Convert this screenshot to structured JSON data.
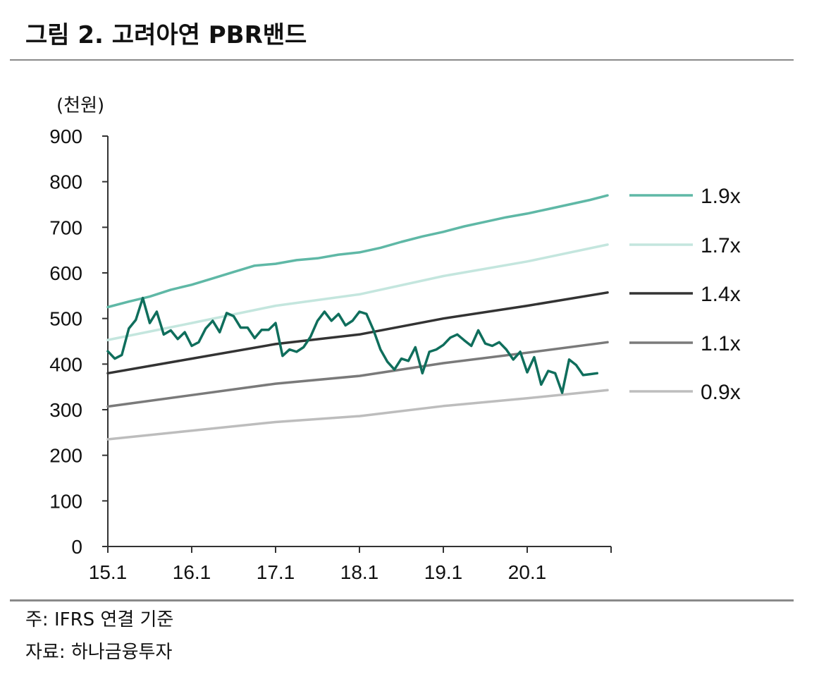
{
  "figure": {
    "title": "그림 2. 고려아연 PBR밴드",
    "note": "주: IFRS 연결 기준",
    "source": "자료: 하나금융투자"
  },
  "chart_data": {
    "type": "line",
    "unit_label": "(천원)",
    "ylim": [
      0,
      900
    ],
    "y_ticks": [
      0,
      100,
      200,
      300,
      400,
      500,
      600,
      700,
      800,
      900
    ],
    "xlim": [
      0,
      72
    ],
    "x_ticks": [
      {
        "x": 0,
        "label": "15.1"
      },
      {
        "x": 12,
        "label": "16.1"
      },
      {
        "x": 24,
        "label": "17.1"
      },
      {
        "x": 36,
        "label": "18.1"
      },
      {
        "x": 48,
        "label": "19.1"
      },
      {
        "x": 60,
        "label": "20.1"
      }
    ],
    "grid": false,
    "legend_position": "right",
    "series": [
      {
        "name": "1.9x",
        "color": "#5fb8a6",
        "width": 3.5,
        "x": [
          0,
          3,
          6,
          9,
          12,
          15,
          18,
          21,
          24,
          27,
          30,
          33,
          36,
          39,
          42,
          45,
          48,
          51,
          54,
          57,
          60,
          63,
          66,
          69,
          71.5
        ],
        "y": [
          525,
          537,
          548,
          563,
          574,
          588,
          602,
          616,
          620,
          628,
          632,
          640,
          645,
          655,
          668,
          680,
          690,
          702,
          712,
          722,
          730,
          740,
          750,
          760,
          770
        ]
      },
      {
        "name": "1.7x",
        "color": "#c4e6de",
        "width": 3.5,
        "x": [
          0,
          12,
          24,
          36,
          48,
          60,
          71.5
        ],
        "y": [
          453,
          490,
          528,
          553,
          593,
          625,
          662
        ]
      },
      {
        "name": "1.4x",
        "color": "#333333",
        "width": 3.5,
        "x": [
          0,
          12,
          24,
          36,
          48,
          60,
          71.5
        ],
        "y": [
          380,
          412,
          444,
          465,
          500,
          528,
          557
        ]
      },
      {
        "name": "1.1x",
        "color": "#7a7a7a",
        "width": 3.5,
        "x": [
          0,
          12,
          24,
          36,
          48,
          60,
          71.5
        ],
        "y": [
          307,
          332,
          357,
          374,
          402,
          425,
          448
        ]
      },
      {
        "name": "0.9x",
        "color": "#bdbdbd",
        "width": 3.5,
        "x": [
          0,
          12,
          24,
          36,
          48,
          60,
          71.5
        ],
        "y": [
          235,
          254,
          273,
          286,
          308,
          325,
          343
        ]
      },
      {
        "name": "",
        "color": "#0f6e5c",
        "width": 3.5,
        "x": [
          0,
          1,
          2,
          3,
          4,
          5,
          6,
          7,
          8,
          9,
          10,
          11,
          12,
          13,
          14,
          15,
          16,
          17,
          18,
          19,
          20,
          21,
          22,
          23,
          24,
          25,
          26,
          27,
          28,
          29,
          30,
          31,
          32,
          33,
          34,
          35,
          36,
          37,
          38,
          39,
          40,
          41,
          42,
          43,
          44,
          45,
          46,
          47,
          48,
          49,
          50,
          51,
          52,
          53,
          54,
          55,
          56,
          57,
          58,
          59,
          60,
          61,
          62,
          63,
          64,
          65,
          66,
          67,
          68,
          69,
          70
        ],
        "y": [
          428,
          412,
          420,
          478,
          497,
          545,
          490,
          515,
          465,
          474,
          455,
          470,
          440,
          448,
          478,
          495,
          470,
          512,
          505,
          480,
          480,
          457,
          475,
          475,
          490,
          418,
          432,
          427,
          437,
          460,
          495,
          515,
          495,
          510,
          485,
          495,
          515,
          510,
          475,
          432,
          405,
          388,
          412,
          407,
          437,
          380,
          427,
          432,
          442,
          458,
          465,
          452,
          440,
          474,
          445,
          440,
          448,
          432,
          410,
          427,
          382,
          415,
          355,
          385,
          380,
          337,
          410,
          398,
          376,
          378,
          380
        ]
      }
    ]
  }
}
